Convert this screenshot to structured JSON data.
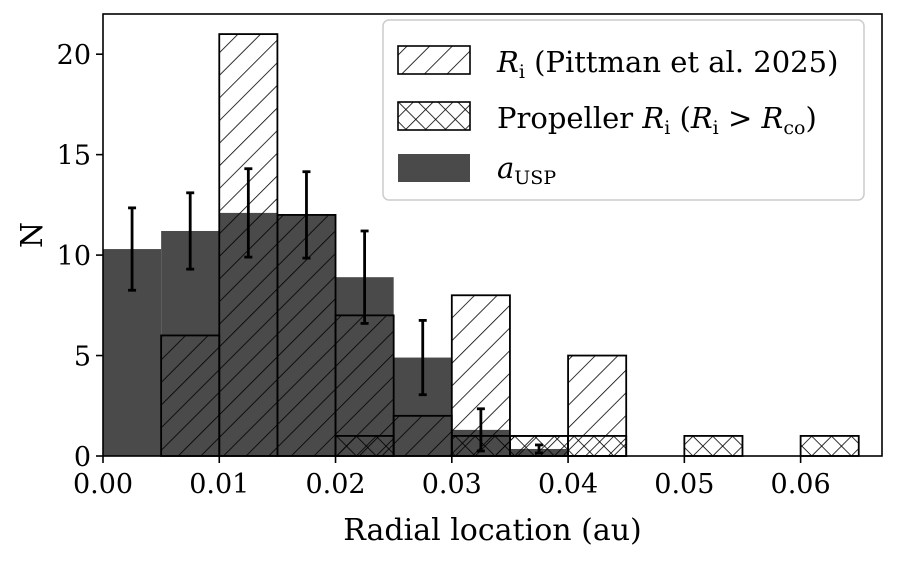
{
  "chart_data": {
    "type": "bar",
    "xlabel": "Radial location (au)",
    "ylabel": "N",
    "xlim": [
      0.0,
      0.067
    ],
    "ylim": [
      0,
      22
    ],
    "x_ticks": [
      "0.00",
      "0.01",
      "0.02",
      "0.03",
      "0.04",
      "0.05",
      "0.06"
    ],
    "y_ticks": [
      "0",
      "5",
      "10",
      "15",
      "20"
    ],
    "bin_width": 0.005,
    "grid": false,
    "legend_position": "top-right",
    "series": [
      {
        "name": "a_USP",
        "style": "filled",
        "color": "#4a4a4a",
        "bin_starts": [
          0.0,
          0.005,
          0.01,
          0.015,
          0.02,
          0.025,
          0.03,
          0.035
        ],
        "values": [
          10.3,
          11.2,
          12.1,
          12.0,
          8.9,
          4.9,
          1.3,
          0.35
        ],
        "errors": [
          2.05,
          1.9,
          2.2,
          2.15,
          2.3,
          1.85,
          1.05,
          0.2
        ]
      },
      {
        "name": "R_i (Pittman et al. 2025)",
        "style": "hatch-diagonal",
        "bin_starts": [
          0.005,
          0.01,
          0.015,
          0.02,
          0.025,
          0.03,
          0.035,
          0.04
        ],
        "values": [
          6,
          21,
          12,
          7,
          2,
          8,
          1,
          5
        ]
      },
      {
        "name": "Propeller R_i (R_i > R_co)",
        "style": "hatch-cross",
        "bin_starts": [
          0.02,
          0.03,
          0.035,
          0.04,
          0.05,
          0.06
        ],
        "values": [
          1,
          1,
          1,
          1,
          1,
          1
        ]
      }
    ],
    "legend": {
      "hatch_entry": {
        "symbol": "R",
        "sub": "i",
        "rest": " (Pittman et al. 2025)"
      },
      "cross_entry": {
        "prefix": "Propeller ",
        "symbol": "R",
        "sub": "i",
        "paren_open": " (",
        "symbol2": "R",
        "sub2": "i",
        "gt": " > ",
        "symbol3": "R",
        "sub3": "co",
        "paren_close": ")"
      },
      "fill_entry": {
        "symbol": "a",
        "sub": "USP"
      }
    }
  }
}
